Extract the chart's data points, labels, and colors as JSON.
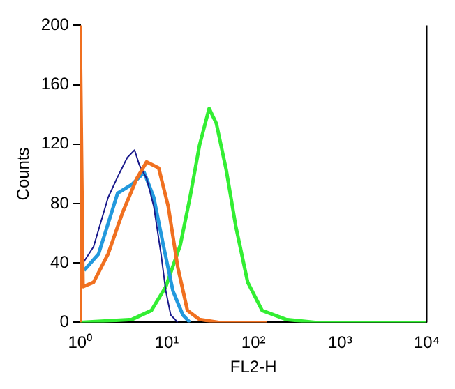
{
  "chart_data": {
    "type": "line",
    "xlabel": "FL2-H",
    "ylabel": "Counts",
    "log": "x",
    "grid": false,
    "legend": false,
    "marker": "none",
    "xlim": [
      1,
      10000
    ],
    "ylim": [
      0,
      200
    ],
    "xticks": [
      {
        "value": 1,
        "label": "10⁰"
      },
      {
        "value": 10,
        "label": "10¹"
      },
      {
        "value": 100,
        "label": "10²"
      },
      {
        "value": 1000,
        "label": "10³"
      },
      {
        "value": 10000,
        "label": "10⁴"
      }
    ],
    "yticks": [
      0,
      40,
      80,
      120,
      160,
      200
    ],
    "series": [
      {
        "color": "#f07020",
        "x": [
          1,
          1,
          1.08,
          1.43,
          2.1,
          3.09,
          4.52,
          5.84,
          8.06,
          10.4,
          13.4,
          17.3,
          23.8,
          39.8,
          142
        ],
        "values": [
          0,
          200,
          24,
          27,
          46,
          74,
          97,
          108,
          104,
          78,
          37,
          8,
          2,
          0,
          0
        ]
      },
      {
        "color": "#1a1a8c",
        "x": [
          1.08,
          1.43,
          2.1,
          2.71,
          3.5,
          4.25,
          4.82,
          5.84,
          7.08,
          8.58,
          9.75,
          11.1,
          13.4
        ],
        "values": [
          40,
          51,
          84,
          98,
          111,
          116,
          106,
          97,
          78,
          46,
          21,
          5,
          0
        ]
      },
      {
        "color": "#2299dd",
        "x": [
          1.11,
          1.63,
          2.71,
          3.98,
          5.48,
          7.08,
          9.12,
          11.8,
          15.3,
          18.5
        ],
        "values": [
          35,
          46,
          87,
          93,
          101,
          84,
          52,
          21,
          5,
          0
        ]
      },
      {
        "color": "#33ee33",
        "x": [
          1,
          3.98,
          6.64,
          9.75,
          14.3,
          18.5,
          23.8,
          30.8,
          37.3,
          48.4,
          62.4,
          85.8,
          126,
          237,
          516,
          10000
        ],
        "values": [
          0,
          2,
          8,
          24,
          52,
          84,
          119,
          144,
          134,
          103,
          65,
          27,
          8,
          2,
          0,
          0
        ]
      }
    ]
  }
}
